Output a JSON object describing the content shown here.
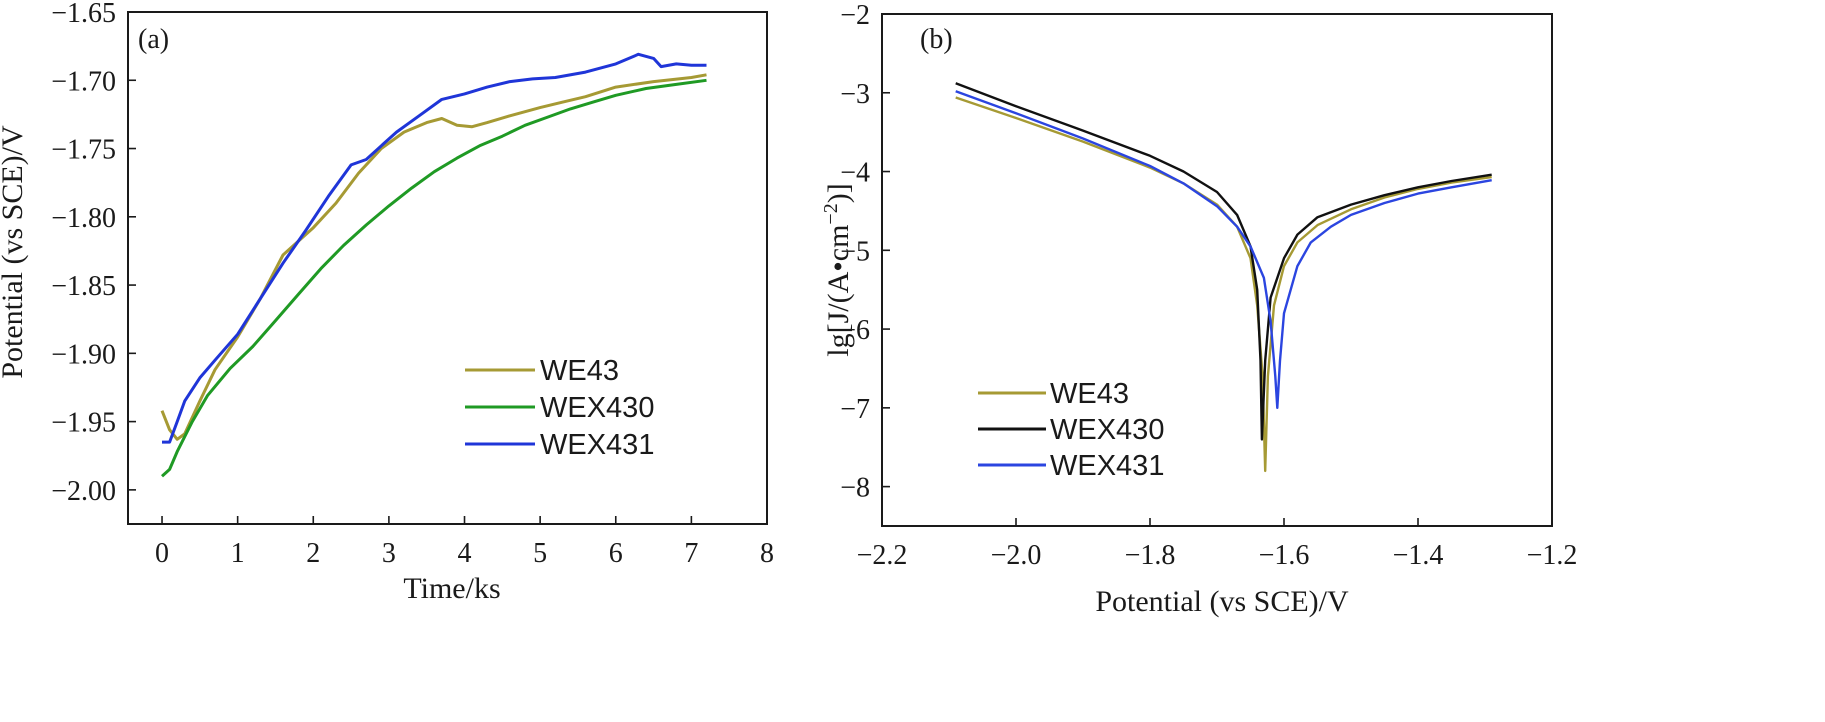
{
  "chart_data": [
    {
      "type": "line",
      "panel_label": "(a)",
      "xlabel": "Time/ks",
      "ylabel": "Potential (vs SCE)/V",
      "xlim": [
        -0.45,
        8.0
      ],
      "ylim": [
        -2.025,
        -1.65
      ],
      "xticks": [
        0,
        1,
        2,
        3,
        4,
        5,
        6,
        7,
        8
      ],
      "xtick_labels": [
        "0",
        "1",
        "2",
        "3",
        "4",
        "5",
        "6",
        "7",
        "8"
      ],
      "yticks": [
        -1.65,
        -1.7,
        -1.75,
        -1.8,
        -1.85,
        -1.9,
        -1.95,
        -2.0
      ],
      "ytick_labels": [
        "−1.65",
        "−1.70",
        "−1.75",
        "−1.80",
        "−1.85",
        "−1.90",
        "−1.95",
        "−2.00"
      ],
      "legend_position": "lower-right",
      "series": [
        {
          "name": "WE43",
          "color": "#a69a34",
          "points": [
            [
              0.0,
              -1.942
            ],
            [
              0.1,
              -1.956
            ],
            [
              0.2,
              -1.963
            ],
            [
              0.3,
              -1.959
            ],
            [
              0.5,
              -1.935
            ],
            [
              0.7,
              -1.912
            ],
            [
              1.0,
              -1.888
            ],
            [
              1.3,
              -1.86
            ],
            [
              1.6,
              -1.828
            ],
            [
              1.8,
              -1.818
            ],
            [
              2.0,
              -1.808
            ],
            [
              2.3,
              -1.79
            ],
            [
              2.6,
              -1.768
            ],
            [
              2.9,
              -1.75
            ],
            [
              3.2,
              -1.738
            ],
            [
              3.5,
              -1.731
            ],
            [
              3.7,
              -1.728
            ],
            [
              3.9,
              -1.733
            ],
            [
              4.1,
              -1.734
            ],
            [
              4.3,
              -1.731
            ],
            [
              4.6,
              -1.726
            ],
            [
              5.0,
              -1.72
            ],
            [
              5.3,
              -1.716
            ],
            [
              5.6,
              -1.712
            ],
            [
              6.0,
              -1.705
            ],
            [
              6.5,
              -1.701
            ],
            [
              7.0,
              -1.698
            ],
            [
              7.2,
              -1.696
            ]
          ]
        },
        {
          "name": "WEX430",
          "color": "#1f9a24",
          "points": [
            [
              0.0,
              -1.99
            ],
            [
              0.1,
              -1.985
            ],
            [
              0.2,
              -1.972
            ],
            [
              0.4,
              -1.95
            ],
            [
              0.6,
              -1.931
            ],
            [
              0.9,
              -1.911
            ],
            [
              1.2,
              -1.895
            ],
            [
              1.5,
              -1.876
            ],
            [
              1.8,
              -1.857
            ],
            [
              2.1,
              -1.838
            ],
            [
              2.4,
              -1.821
            ],
            [
              2.7,
              -1.806
            ],
            [
              3.0,
              -1.792
            ],
            [
              3.3,
              -1.779
            ],
            [
              3.6,
              -1.767
            ],
            [
              3.9,
              -1.757
            ],
            [
              4.2,
              -1.748
            ],
            [
              4.5,
              -1.741
            ],
            [
              4.8,
              -1.733
            ],
            [
              5.1,
              -1.727
            ],
            [
              5.4,
              -1.721
            ],
            [
              5.7,
              -1.716
            ],
            [
              6.0,
              -1.711
            ],
            [
              6.4,
              -1.706
            ],
            [
              6.8,
              -1.703
            ],
            [
              7.2,
              -1.7
            ]
          ]
        },
        {
          "name": "WEX431",
          "color": "#1f35d8",
          "points": [
            [
              0.0,
              -1.965
            ],
            [
              0.1,
              -1.965
            ],
            [
              0.2,
              -1.95
            ],
            [
              0.3,
              -1.935
            ],
            [
              0.5,
              -1.918
            ],
            [
              0.7,
              -1.905
            ],
            [
              1.0,
              -1.886
            ],
            [
              1.3,
              -1.86
            ],
            [
              1.6,
              -1.834
            ],
            [
              1.9,
              -1.81
            ],
            [
              2.2,
              -1.785
            ],
            [
              2.5,
              -1.762
            ],
            [
              2.7,
              -1.758
            ],
            [
              2.9,
              -1.748
            ],
            [
              3.1,
              -1.738
            ],
            [
              3.4,
              -1.726
            ],
            [
              3.7,
              -1.714
            ],
            [
              4.0,
              -1.71
            ],
            [
              4.3,
              -1.705
            ],
            [
              4.6,
              -1.701
            ],
            [
              4.9,
              -1.699
            ],
            [
              5.2,
              -1.698
            ],
            [
              5.6,
              -1.694
            ],
            [
              6.0,
              -1.688
            ],
            [
              6.3,
              -1.681
            ],
            [
              6.5,
              -1.684
            ],
            [
              6.6,
              -1.69
            ],
            [
              6.8,
              -1.688
            ],
            [
              7.0,
              -1.689
            ],
            [
              7.2,
              -1.689
            ]
          ]
        }
      ]
    },
    {
      "type": "line",
      "panel_label": "(b)",
      "xlabel": "Potential (vs SCE)/V",
      "ylabel_text": "lg[J/(A•cm",
      "ylabel_exp": "−2",
      "ylabel_close": ")]",
      "xlim": [
        -2.2,
        -1.2
      ],
      "ylim": [
        -8.5,
        -2.0
      ],
      "xticks": [
        -2.2,
        -2.0,
        -1.8,
        -1.6,
        -1.4,
        -1.2
      ],
      "xtick_labels": [
        "−2.2",
        "−2.0",
        "−1.8",
        "−1.6",
        "−1.4",
        "−1.2"
      ],
      "yticks": [
        -2,
        -3,
        -4,
        -5,
        -6,
        -7,
        -8
      ],
      "ytick_labels": [
        "−2",
        "−3",
        "−4",
        "−5",
        "−6",
        "−7",
        "−8"
      ],
      "legend_position": "lower-left",
      "series": [
        {
          "name": "WE43",
          "color": "#a69a34",
          "points": [
            [
              -2.09,
              -3.06
            ],
            [
              -2.0,
              -3.32
            ],
            [
              -1.9,
              -3.62
            ],
            [
              -1.8,
              -3.95
            ],
            [
              -1.75,
              -4.15
            ],
            [
              -1.7,
              -4.42
            ],
            [
              -1.67,
              -4.7
            ],
            [
              -1.65,
              -5.1
            ],
            [
              -1.64,
              -5.7
            ],
            [
              -1.632,
              -6.6
            ],
            [
              -1.628,
              -7.8
            ],
            [
              -1.624,
              -6.6
            ],
            [
              -1.615,
              -5.7
            ],
            [
              -1.6,
              -5.2
            ],
            [
              -1.58,
              -4.9
            ],
            [
              -1.55,
              -4.68
            ],
            [
              -1.5,
              -4.48
            ],
            [
              -1.45,
              -4.33
            ],
            [
              -1.4,
              -4.22
            ],
            [
              -1.35,
              -4.14
            ],
            [
              -1.29,
              -4.07
            ]
          ]
        },
        {
          "name": "WEX430",
          "color": "#111111",
          "points": [
            [
              -2.09,
              -2.88
            ],
            [
              -2.0,
              -3.17
            ],
            [
              -1.9,
              -3.48
            ],
            [
              -1.8,
              -3.8
            ],
            [
              -1.75,
              -4.0
            ],
            [
              -1.7,
              -4.26
            ],
            [
              -1.67,
              -4.55
            ],
            [
              -1.65,
              -4.95
            ],
            [
              -1.64,
              -5.5
            ],
            [
              -1.635,
              -6.4
            ],
            [
              -1.633,
              -7.4
            ],
            [
              -1.628,
              -6.4
            ],
            [
              -1.62,
              -5.6
            ],
            [
              -1.6,
              -5.1
            ],
            [
              -1.58,
              -4.8
            ],
            [
              -1.55,
              -4.58
            ],
            [
              -1.5,
              -4.42
            ],
            [
              -1.45,
              -4.3
            ],
            [
              -1.4,
              -4.2
            ],
            [
              -1.35,
              -4.12
            ],
            [
              -1.29,
              -4.04
            ]
          ]
        },
        {
          "name": "WEX431",
          "color": "#2b45e0",
          "points": [
            [
              -2.09,
              -2.98
            ],
            [
              -2.0,
              -3.26
            ],
            [
              -1.9,
              -3.58
            ],
            [
              -1.8,
              -3.93
            ],
            [
              -1.75,
              -4.15
            ],
            [
              -1.7,
              -4.44
            ],
            [
              -1.67,
              -4.7
            ],
            [
              -1.65,
              -4.95
            ],
            [
              -1.63,
              -5.35
            ],
            [
              -1.62,
              -5.9
            ],
            [
              -1.613,
              -6.6
            ],
            [
              -1.61,
              -7.0
            ],
            [
              -1.606,
              -6.4
            ],
            [
              -1.6,
              -5.8
            ],
            [
              -1.58,
              -5.2
            ],
            [
              -1.56,
              -4.9
            ],
            [
              -1.53,
              -4.7
            ],
            [
              -1.5,
              -4.55
            ],
            [
              -1.45,
              -4.4
            ],
            [
              -1.4,
              -4.28
            ],
            [
              -1.35,
              -4.2
            ],
            [
              -1.29,
              -4.11
            ]
          ]
        }
      ]
    }
  ]
}
